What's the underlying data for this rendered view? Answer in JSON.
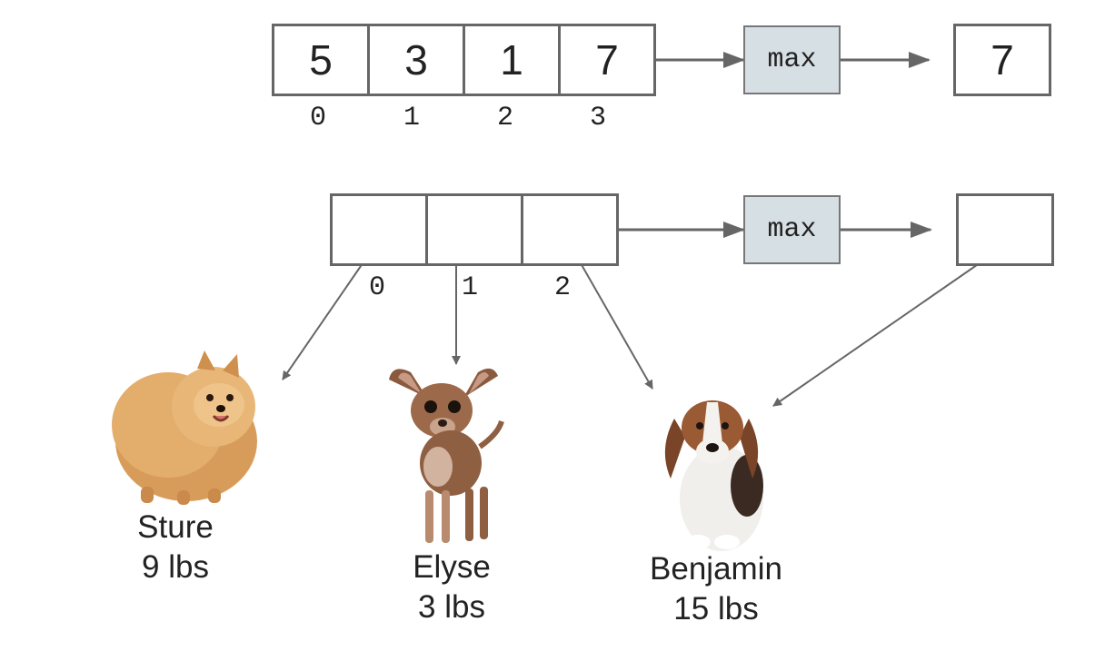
{
  "top": {
    "values": [
      "5",
      "3",
      "1",
      "7"
    ],
    "indices": [
      "0",
      "1",
      "2",
      "3"
    ],
    "function": "max",
    "result": "7"
  },
  "bottom": {
    "indices": [
      "0",
      "1",
      "2"
    ],
    "function": "max",
    "result": ""
  },
  "dogs": [
    {
      "name": "Sture",
      "weight": "9 lbs",
      "icon": "pomeranian-dog"
    },
    {
      "name": "Elyse",
      "weight": "3 lbs",
      "icon": "chihuahua-dog"
    },
    {
      "name": "Benjamin",
      "weight": "15 lbs",
      "icon": "beagle-dog"
    }
  ],
  "colors": {
    "box_border": "#666666",
    "function_fill": "#d6dfe4",
    "arrow": "#666666"
  }
}
